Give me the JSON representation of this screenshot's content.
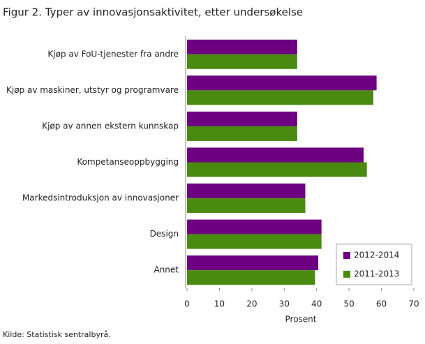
{
  "chart_data": {
    "type": "hbar",
    "title": "Figur 2. Typer av innovasjonsaktivitet, etter undersøkelse",
    "categories": [
      "Kjøp av FoU-tjenester fra andre",
      "Kjøp av maskiner, utstyr og programvare",
      "Kjøp av annen ekstern kunnskap",
      "Kompetanseoppbygging",
      "Markedsintroduksjon av innovasjoner",
      "Design",
      "Annet"
    ],
    "series": [
      {
        "name": "2012-2014",
        "color": "#6c0080",
        "values": [
          34,
          58.5,
          34,
          54.5,
          36.5,
          41.5,
          40.5
        ]
      },
      {
        "name": "2011-2013",
        "color": "#4a8a10",
        "values": [
          34,
          57.5,
          34,
          55.5,
          36.5,
          41.5,
          39.5
        ]
      }
    ],
    "xlim": [
      0,
      70
    ],
    "xticks": [
      0,
      10,
      20,
      30,
      40,
      50,
      60,
      70
    ],
    "xlabel": "Prosent",
    "legend": "lower right",
    "source": "Kilde: Statistisk sentralbyrå."
  }
}
